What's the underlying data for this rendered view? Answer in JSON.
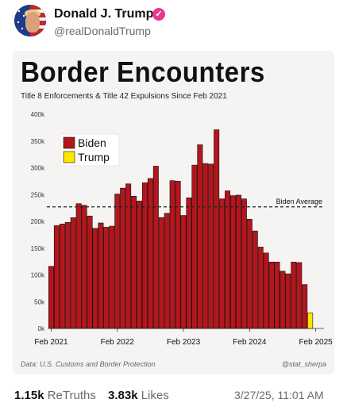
{
  "post": {
    "author_name": "Donald J. Trump",
    "author_handle": "@realDonaldTrump",
    "verified_icon": "verified-badge-icon",
    "retruths_count": "1.15k",
    "retruths_label": "ReTruths",
    "likes_count": "3.83k",
    "likes_label": "Likes",
    "timestamp": "3/27/25, 11:01 AM"
  },
  "chart_data": {
    "type": "bar",
    "title": "Border Encounters",
    "subtitle": "Title 8 Enforcements & Title 42 Expulsions Since Feb 2021",
    "source": "Data: U.S. Customs and Border Protection",
    "credit": "@stat_sherpa",
    "ylim": [
      0,
      400000
    ],
    "yticks": [
      "0k",
      "50k",
      "100k",
      "150k",
      "200k",
      "250k",
      "300k",
      "350k",
      "400k"
    ],
    "ytick_values": [
      0,
      50000,
      100000,
      150000,
      200000,
      250000,
      300000,
      350000,
      400000
    ],
    "xtick_labels": [
      {
        "label": "Feb 2021",
        "index": 0
      },
      {
        "label": "Feb 2022",
        "index": 12
      },
      {
        "label": "Feb 2023",
        "index": 24
      },
      {
        "label": "Feb 2024",
        "index": 36
      },
      {
        "label": "Feb 2025",
        "index": 48
      }
    ],
    "legend": {
      "placement": "top-left",
      "entries": [
        {
          "name": "Biden",
          "color": "#b3161c"
        },
        {
          "name": "Trump",
          "color": "#ffe600"
        }
      ]
    },
    "reference_line": {
      "label": "Biden Average",
      "value": 227000,
      "style": "dashed"
    },
    "series": [
      {
        "name": "Biden",
        "color": "#b3161c",
        "values": [
          116000,
          192000,
          195000,
          198000,
          207000,
          233000,
          230000,
          210000,
          187000,
          197000,
          189000,
          191000,
          251000,
          262000,
          270000,
          247000,
          238000,
          272000,
          280000,
          303000,
          207000,
          215000,
          276000,
          275000,
          211000,
          244000,
          305000,
          343000,
          308000,
          307000,
          371000,
          242000,
          257000,
          248000,
          249000,
          242000,
          204000,
          182000,
          152000,
          141000,
          124000,
          124000,
          107000,
          102000,
          124000,
          123000,
          82000
        ]
      },
      {
        "name": "Trump",
        "color": "#ffe600",
        "values": [
          null,
          null,
          null,
          null,
          null,
          null,
          null,
          null,
          null,
          null,
          null,
          null,
          null,
          null,
          null,
          null,
          null,
          null,
          null,
          null,
          null,
          null,
          null,
          null,
          null,
          null,
          null,
          null,
          null,
          null,
          null,
          null,
          null,
          null,
          null,
          null,
          null,
          null,
          null,
          null,
          null,
          null,
          null,
          null,
          null,
          null,
          null,
          29000
        ]
      }
    ]
  }
}
